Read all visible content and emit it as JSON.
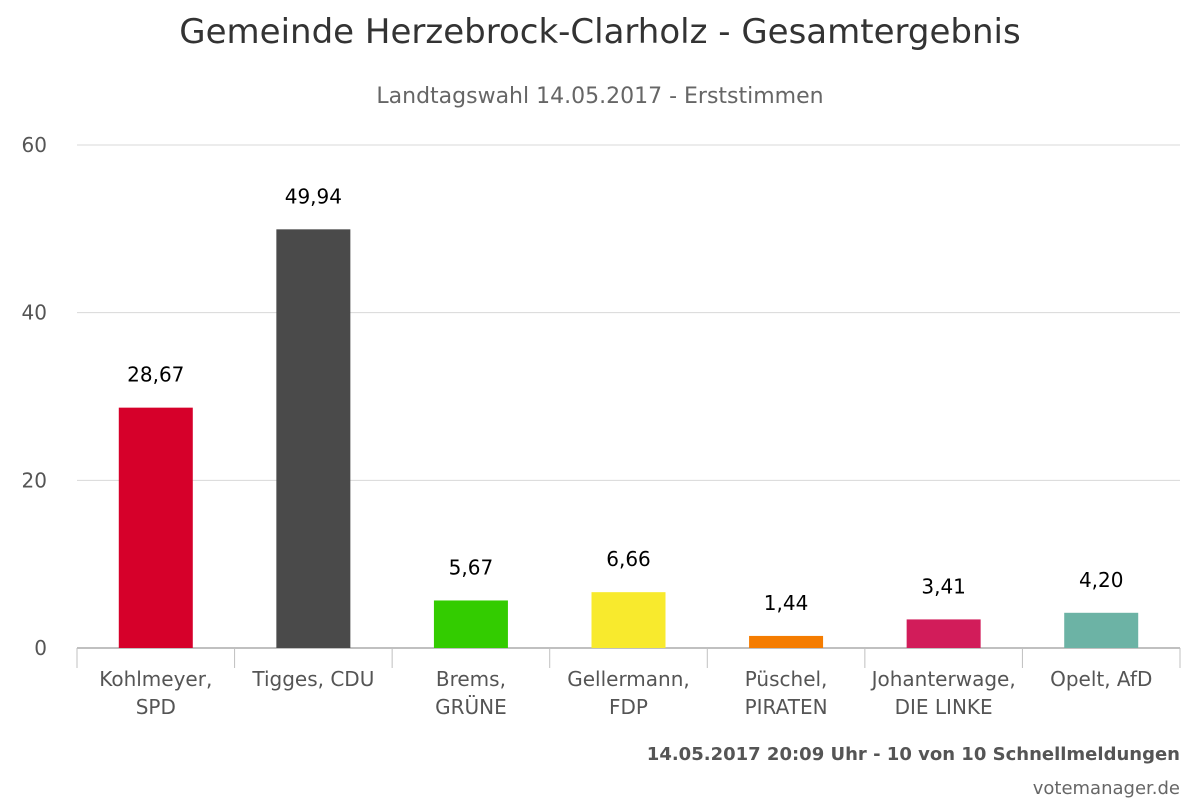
{
  "title": "Gemeinde Herzebrock-Clarholz - Gesamtergebnis",
  "subtitle": "Landtagswahl 14.05.2017 - Erststimmen",
  "footer_note": "14.05.2017 20:09 Uhr - 10 von 10 Schnellmeldungen",
  "credit": "votemanager.de",
  "chart_data": {
    "type": "bar",
    "categories": [
      [
        "Kohlmeyer,",
        "SPD"
      ],
      [
        "Tigges, CDU"
      ],
      [
        "Brems,",
        "GRÜNE"
      ],
      [
        "Gellermann,",
        "FDP"
      ],
      [
        "Püschel,",
        "PIRATEN"
      ],
      [
        "Johanterwage,",
        "DIE LINKE"
      ],
      [
        "Opelt, AfD"
      ]
    ],
    "values": [
      28.67,
      49.94,
      5.67,
      6.66,
      1.44,
      3.41,
      4.2
    ],
    "value_labels": [
      "28,67",
      "49,94",
      "5,67",
      "6,66",
      "1,44",
      "3,41",
      "4,20"
    ],
    "colors": [
      "#d6002a",
      "#4a4a4a",
      "#33cc00",
      "#f8ea2d",
      "#f57c00",
      "#d21c5a",
      "#6cb3a5"
    ],
    "y_ticks": [
      0,
      20,
      40,
      60
    ],
    "ylim": [
      0,
      60
    ],
    "grid": true,
    "legend": "none"
  }
}
